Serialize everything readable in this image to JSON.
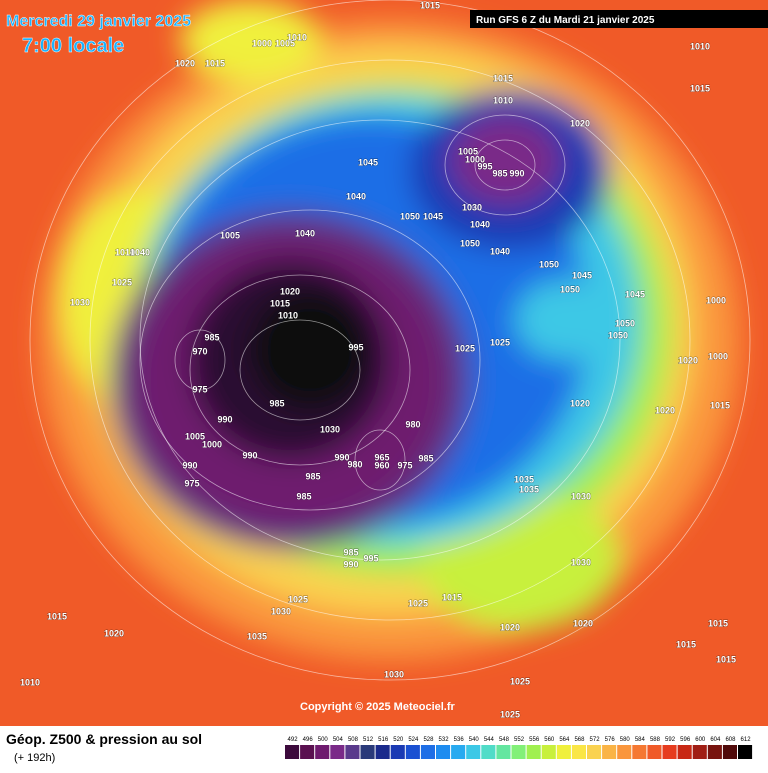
{
  "header": {
    "date": "Mercredi 29 janvier 2025",
    "time": "7:00 locale",
    "run": "Run GFS 6 Z du Mardi 21 janvier 2025"
  },
  "pressure_labels": [
    1015,
    1010,
    1015,
    1020,
    1015,
    1000,
    1005,
    1010,
    1015,
    1010,
    1020,
    1005,
    1000,
    995,
    985,
    990,
    1045,
    1040,
    1030,
    1050,
    1045,
    1040,
    1050,
    1040,
    1050,
    1045,
    1050,
    1045,
    1000,
    1050,
    1050,
    1025,
    1025,
    1020,
    1000,
    1020,
    1020,
    1015,
    1005,
    1040,
    1010,
    1040,
    1025,
    1030,
    1020,
    1015,
    1010,
    995,
    985,
    970,
    975,
    990,
    985,
    1005,
    1000,
    990,
    1030,
    990,
    980,
    980,
    985,
    965,
    960,
    975,
    985,
    985,
    990,
    975,
    1035,
    1035,
    1030,
    985,
    990,
    995,
    1030,
    1025,
    1030,
    1015,
    1025,
    1020,
    1020,
    1015,
    1020,
    1035,
    1015,
    1015,
    1015,
    1010,
    1030,
    1025,
    1025
  ],
  "copyright": "Copyright © 2025 Meteociel.fr",
  "footer": {
    "title": "Géop. Z500 & pression au sol",
    "lead": "(+ 192h)"
  },
  "legend": {
    "values": [
      492,
      496,
      500,
      504,
      508,
      512,
      516,
      520,
      524,
      528,
      532,
      536,
      540,
      544,
      548,
      552,
      556,
      560,
      564,
      568,
      572,
      576,
      580,
      584,
      588,
      592,
      596,
      600,
      604,
      608,
      612
    ],
    "colors": [
      "#3c0a3c",
      "#5a1050",
      "#6e1a6e",
      "#7a2a88",
      "#5a3a8c",
      "#2a3a7a",
      "#1a2a8c",
      "#1a3ab4",
      "#1a50d2",
      "#1e6ee6",
      "#1e8cf0",
      "#28aaf0",
      "#3cc8e6",
      "#50dcc8",
      "#64e6a0",
      "#82f078",
      "#a0f050",
      "#c8f03c",
      "#f0f03c",
      "#fae646",
      "#fad250",
      "#fab446",
      "#fa963c",
      "#f57832",
      "#f05a28",
      "#e63c1e",
      "#c82814",
      "#a01e14",
      "#78140f",
      "#500a0a",
      "#000000"
    ]
  }
}
